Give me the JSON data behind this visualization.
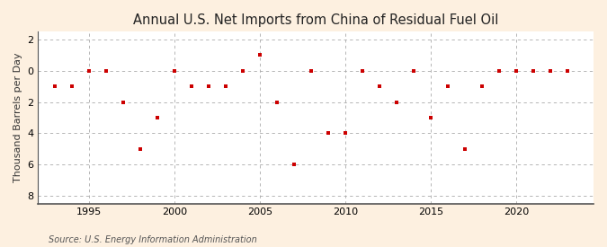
{
  "title": "Annual U.S. Net Imports from China of Residual Fuel Oil",
  "ylabel": "Thousand Barrels per Day",
  "source": "Source: U.S. Energy Information Administration",
  "fig_background_color": "#fdf0e0",
  "plot_background_color": "#ffffff",
  "marker_color": "#cc0000",
  "xlim": [
    1992,
    2024.5
  ],
  "ylim": [
    -8.5,
    2.5
  ],
  "yticks": [
    -8,
    -6,
    -4,
    -2,
    0,
    2
  ],
  "yticklabels": [
    "8",
    "6",
    "4",
    "2",
    "0",
    "2"
  ],
  "xticks": [
    1995,
    2000,
    2005,
    2010,
    2015,
    2020
  ],
  "years": [
    1993,
    1994,
    1995,
    1996,
    1997,
    1998,
    1999,
    2000,
    2001,
    2002,
    2003,
    2004,
    2005,
    2006,
    2007,
    2008,
    2009,
    2010,
    2011,
    2012,
    2013,
    2014,
    2015,
    2016,
    2017,
    2018,
    2019,
    2020,
    2021,
    2022,
    2023
  ],
  "values": [
    -1.0,
    -1.0,
    0.0,
    0.0,
    -2.0,
    -5.0,
    -3.0,
    0.0,
    -1.0,
    -1.0,
    -1.0,
    0.0,
    1.0,
    -2.0,
    -6.0,
    0.0,
    -4.0,
    -4.0,
    0.0,
    -1.0,
    -2.0,
    0.0,
    -3.0,
    -1.0,
    -5.0,
    -1.0,
    0.0,
    0.0,
    0.0,
    0.0,
    0.0
  ]
}
